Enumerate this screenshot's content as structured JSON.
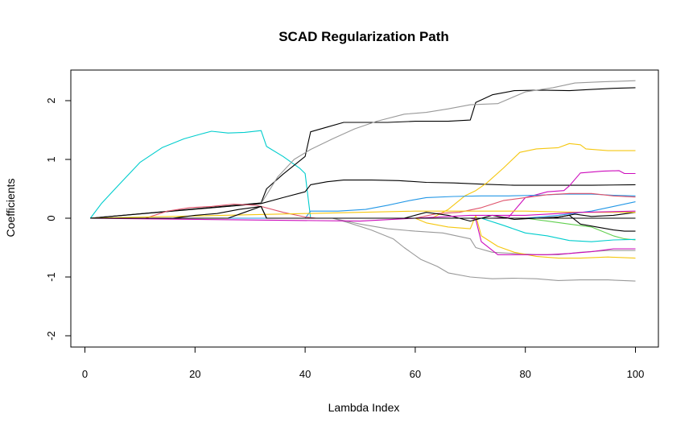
{
  "chart_data": {
    "type": "line",
    "title": "SCAD Regularization Path",
    "xlabel": "Lambda Index",
    "ylabel": "Coefficients",
    "xlim": [
      0,
      100
    ],
    "ylim": [
      -2,
      2
    ],
    "xticks": [
      0,
      20,
      40,
      60,
      80,
      100
    ],
    "yticks": [
      -2,
      -1,
      0,
      1,
      2
    ],
    "grid": false,
    "legend": "none",
    "series": [
      {
        "color": "#00CDCD",
        "points": [
          [
            1,
            0
          ],
          [
            3,
            0.25
          ],
          [
            6,
            0.55
          ],
          [
            10,
            0.95
          ],
          [
            14,
            1.2
          ],
          [
            18,
            1.35
          ],
          [
            21,
            1.43
          ],
          [
            23,
            1.48
          ],
          [
            26,
            1.45
          ],
          [
            29,
            1.46
          ],
          [
            32,
            1.49
          ],
          [
            33,
            1.22
          ],
          [
            36,
            1.05
          ],
          [
            39,
            0.85
          ],
          [
            40,
            0.76
          ],
          [
            41,
            0
          ],
          [
            100,
            0
          ]
        ]
      },
      {
        "color": "#000000",
        "points": [
          [
            1,
            0
          ],
          [
            32,
            0.26
          ],
          [
            33,
            0.5
          ],
          [
            36,
            0.75
          ],
          [
            40,
            1.05
          ],
          [
            41,
            1.47
          ],
          [
            44,
            1.55
          ],
          [
            47,
            1.63
          ],
          [
            51,
            1.63
          ],
          [
            55,
            1.63
          ],
          [
            60,
            1.65
          ],
          [
            66,
            1.65
          ],
          [
            70,
            1.67
          ],
          [
            71,
            1.97
          ],
          [
            74,
            2.1
          ],
          [
            78,
            2.17
          ],
          [
            83,
            2.18
          ],
          [
            88,
            2.17
          ],
          [
            92,
            2.19
          ],
          [
            96,
            2.21
          ],
          [
            100,
            2.22
          ]
        ]
      },
      {
        "color": "#999999",
        "points": [
          [
            1,
            0
          ],
          [
            32,
            0.25
          ],
          [
            35,
            0.7
          ],
          [
            38,
            1.0
          ],
          [
            41,
            1.17
          ],
          [
            45,
            1.35
          ],
          [
            49,
            1.52
          ],
          [
            53,
            1.65
          ],
          [
            58,
            1.77
          ],
          [
            62,
            1.8
          ],
          [
            66,
            1.86
          ],
          [
            70,
            1.93
          ],
          [
            75,
            1.95
          ],
          [
            80,
            2.15
          ],
          [
            85,
            2.22
          ],
          [
            89,
            2.3
          ],
          [
            94,
            2.32
          ],
          [
            100,
            2.34
          ]
        ]
      },
      {
        "color": "#000000",
        "points": [
          [
            1,
            0
          ],
          [
            32,
            0.25
          ],
          [
            36,
            0.35
          ],
          [
            40,
            0.45
          ],
          [
            41,
            0.57
          ],
          [
            44,
            0.62
          ],
          [
            47,
            0.65
          ],
          [
            52,
            0.65
          ],
          [
            57,
            0.64
          ],
          [
            62,
            0.61
          ],
          [
            67,
            0.6
          ],
          [
            72,
            0.58
          ],
          [
            78,
            0.56
          ],
          [
            85,
            0.56
          ],
          [
            92,
            0.56
          ],
          [
            100,
            0.57
          ]
        ]
      },
      {
        "color": "#F5C710",
        "points": [
          [
            1,
            0
          ],
          [
            63,
            0
          ],
          [
            66,
            0.15
          ],
          [
            69,
            0.38
          ],
          [
            71,
            0.47
          ],
          [
            73,
            0.6
          ],
          [
            76,
            0.85
          ],
          [
            79,
            1.12
          ],
          [
            82,
            1.18
          ],
          [
            86,
            1.2
          ],
          [
            88,
            1.27
          ],
          [
            90,
            1.25
          ],
          [
            91,
            1.18
          ],
          [
            95,
            1.15
          ],
          [
            100,
            1.15
          ]
        ]
      },
      {
        "color": "#CD0BBC",
        "points": [
          [
            1,
            0
          ],
          [
            74,
            0
          ],
          [
            77,
            0.02
          ],
          [
            80,
            0.35
          ],
          [
            84,
            0.45
          ],
          [
            87,
            0.47
          ],
          [
            88,
            0.55
          ],
          [
            90,
            0.77
          ],
          [
            94,
            0.8
          ],
          [
            97,
            0.81
          ],
          [
            98,
            0.76
          ],
          [
            100,
            0.76
          ]
        ]
      },
      {
        "color": "#2297E6",
        "points": [
          [
            1,
            0
          ],
          [
            40,
            0
          ],
          [
            41,
            0.12
          ],
          [
            46,
            0.12
          ],
          [
            51,
            0.15
          ],
          [
            55,
            0.22
          ],
          [
            59,
            0.3
          ],
          [
            62,
            0.35
          ],
          [
            67,
            0.37
          ],
          [
            72,
            0.38
          ],
          [
            77,
            0.38
          ],
          [
            82,
            0.39
          ],
          [
            87,
            0.41
          ],
          [
            92,
            0.41
          ],
          [
            96,
            0.39
          ],
          [
            100,
            0.38
          ]
        ]
      },
      {
        "color": "#DF536B",
        "points": [
          [
            1,
            0
          ],
          [
            11,
            0
          ],
          [
            15,
            0.12
          ],
          [
            19,
            0.18
          ],
          [
            23,
            0.2
          ],
          [
            27,
            0.24
          ],
          [
            31,
            0.22
          ],
          [
            32,
            0.2
          ],
          [
            36,
            0.1
          ],
          [
            40,
            0.02
          ],
          [
            42,
            0
          ],
          [
            60,
            0
          ],
          [
            64,
            0.08
          ],
          [
            68,
            0.1
          ],
          [
            72,
            0.18
          ],
          [
            76,
            0.3
          ],
          [
            80,
            0.35
          ],
          [
            84,
            0.4
          ],
          [
            88,
            0.42
          ],
          [
            92,
            0.42
          ],
          [
            96,
            0.38
          ],
          [
            100,
            0.36
          ]
        ]
      },
      {
        "color": "#61D04F",
        "points": [
          [
            1,
            0
          ],
          [
            40,
            0
          ],
          [
            60,
            0
          ],
          [
            80,
            0
          ],
          [
            84,
            -0.05
          ],
          [
            88,
            -0.1
          ],
          [
            92,
            -0.15
          ],
          [
            96,
            -0.3
          ],
          [
            98,
            -0.35
          ],
          [
            100,
            -0.37
          ]
        ]
      },
      {
        "color": "#999999",
        "points": [
          [
            1,
            0
          ],
          [
            45,
            0
          ],
          [
            48,
            -0.08
          ],
          [
            52,
            -0.2
          ],
          [
            56,
            -0.35
          ],
          [
            58,
            -0.5
          ],
          [
            61,
            -0.7
          ],
          [
            64,
            -0.82
          ],
          [
            66,
            -0.93
          ],
          [
            70,
            -1.0
          ],
          [
            74,
            -1.03
          ],
          [
            78,
            -1.02
          ],
          [
            82,
            -1.03
          ],
          [
            86,
            -1.06
          ],
          [
            90,
            -1.05
          ],
          [
            95,
            -1.05
          ],
          [
            100,
            -1.07
          ]
        ]
      },
      {
        "color": "#999999",
        "points": [
          [
            1,
            0
          ],
          [
            45,
            0
          ],
          [
            50,
            -0.1
          ],
          [
            55,
            -0.18
          ],
          [
            60,
            -0.22
          ],
          [
            65,
            -0.25
          ],
          [
            70,
            -0.35
          ],
          [
            71,
            -0.5
          ],
          [
            74,
            -0.58
          ],
          [
            78,
            -0.6
          ],
          [
            82,
            -0.62
          ],
          [
            86,
            -0.62
          ],
          [
            90,
            -0.58
          ],
          [
            95,
            -0.55
          ],
          [
            100,
            -0.55
          ]
        ]
      },
      {
        "color": "#F5C710",
        "points": [
          [
            1,
            0
          ],
          [
            60,
            0
          ],
          [
            62,
            -0.08
          ],
          [
            66,
            -0.15
          ],
          [
            70,
            -0.18
          ],
          [
            71,
            0.05
          ],
          [
            72,
            -0.3
          ],
          [
            75,
            -0.48
          ],
          [
            78,
            -0.58
          ],
          [
            82,
            -0.65
          ],
          [
            86,
            -0.68
          ],
          [
            90,
            -0.68
          ],
          [
            95,
            -0.66
          ],
          [
            100,
            -0.68
          ]
        ]
      },
      {
        "color": "#CD0BBC",
        "points": [
          [
            1,
            0
          ],
          [
            70,
            0
          ],
          [
            71,
            -0.02
          ],
          [
            72,
            -0.4
          ],
          [
            75,
            -0.62
          ],
          [
            79,
            -0.62
          ],
          [
            84,
            -0.62
          ],
          [
            88,
            -0.6
          ],
          [
            92,
            -0.57
          ],
          [
            96,
            -0.52
          ],
          [
            100,
            -0.52
          ]
        ]
      },
      {
        "color": "#00CDCD",
        "points": [
          [
            1,
            0
          ],
          [
            72,
            0
          ],
          [
            76,
            -0.12
          ],
          [
            80,
            -0.25
          ],
          [
            84,
            -0.3
          ],
          [
            88,
            -0.38
          ],
          [
            92,
            -0.4
          ],
          [
            96,
            -0.37
          ],
          [
            100,
            -0.36
          ]
        ]
      },
      {
        "color": "#000000",
        "points": [
          [
            1,
            0
          ],
          [
            58,
            0
          ],
          [
            62,
            0.1
          ],
          [
            66,
            0.05
          ],
          [
            70,
            -0.05
          ],
          [
            74,
            0.05
          ],
          [
            78,
            -0.02
          ],
          [
            82,
            0
          ],
          [
            86,
            0.02
          ],
          [
            88,
            0.05
          ],
          [
            90,
            -0.1
          ],
          [
            93,
            -0.15
          ],
          [
            96,
            -0.2
          ],
          [
            98,
            -0.22
          ],
          [
            100,
            -0.22
          ]
        ]
      },
      {
        "color": "#000000",
        "points": [
          [
            1,
            0
          ],
          [
            85,
            0
          ],
          [
            89,
            0.07
          ],
          [
            92,
            0.03
          ],
          [
            96,
            0.05
          ],
          [
            100,
            0.1
          ]
        ]
      },
      {
        "color": "#F5C710",
        "points": [
          [
            1,
            0
          ],
          [
            40,
            0.08
          ],
          [
            50,
            0.1
          ],
          [
            60,
            0.12
          ],
          [
            70,
            0.12
          ],
          [
            80,
            0.12
          ],
          [
            90,
            0.1
          ],
          [
            100,
            0.1
          ]
        ]
      },
      {
        "color": "#2297E6",
        "points": [
          [
            1,
            0
          ],
          [
            80,
            0
          ],
          [
            86,
            0.05
          ],
          [
            92,
            0.12
          ],
          [
            96,
            0.2
          ],
          [
            100,
            0.28
          ]
        ]
      },
      {
        "color": "#CD0BBC",
        "points": [
          [
            1,
            0
          ],
          [
            50,
            -0.05
          ],
          [
            60,
            0
          ],
          [
            70,
            0.05
          ],
          [
            80,
            0.05
          ],
          [
            90,
            0.1
          ],
          [
            100,
            0.12
          ]
        ]
      },
      {
        "color": "#000000",
        "points": [
          [
            1,
            0
          ],
          [
            16,
            0
          ],
          [
            20,
            0.05
          ],
          [
            24,
            0.08
          ],
          [
            28,
            0.15
          ],
          [
            32,
            0.2
          ],
          [
            33,
            0
          ],
          [
            100,
            0
          ]
        ]
      },
      {
        "color": "#000000",
        "points": [
          [
            1,
            0
          ],
          [
            26,
            0
          ],
          [
            29,
            0.1
          ],
          [
            32,
            0.2
          ],
          [
            33,
            0
          ],
          [
            100,
            0
          ]
        ]
      }
    ]
  }
}
